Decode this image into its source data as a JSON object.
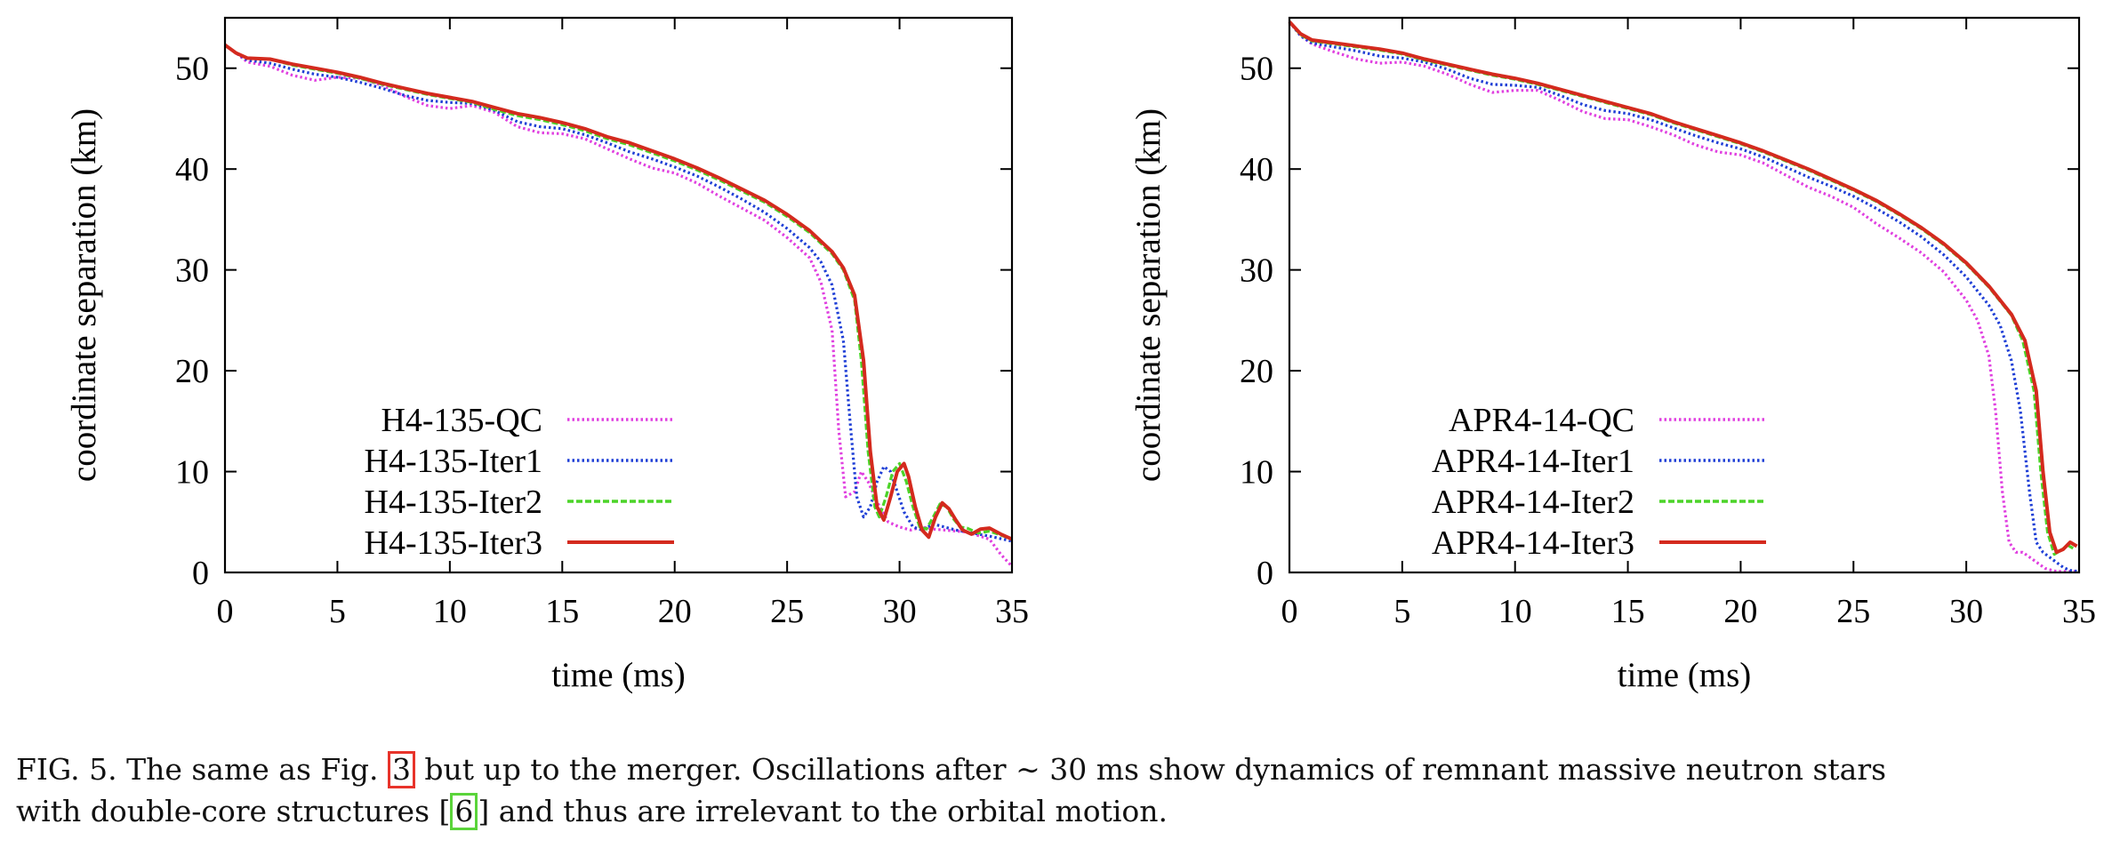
{
  "chart_data": [
    {
      "type": "line",
      "title": "",
      "xlabel": "time (ms)",
      "ylabel": "coordinate separation (km)",
      "xlim": [
        0,
        35
      ],
      "ylim": [
        0,
        55
      ],
      "xticks": [
        0,
        5,
        10,
        15,
        20,
        25,
        30,
        35
      ],
      "yticks": [
        0,
        10,
        20,
        30,
        40,
        50
      ],
      "grid": false,
      "legend_position": "bottom-left",
      "series": [
        {
          "name": "H4-135-QC",
          "color": "#e040e0",
          "style": "dotted",
          "x": [
            0,
            0.5,
            1,
            2,
            3,
            4,
            5,
            6,
            7,
            8,
            9,
            10,
            11,
            12,
            13,
            14,
            15,
            16,
            17,
            18,
            19,
            20,
            21,
            22,
            23,
            24,
            25,
            26,
            26.5,
            27,
            27.3,
            27.6,
            28,
            28.3,
            28.6,
            29,
            29.5,
            30,
            30.5,
            31,
            31.5,
            32,
            33,
            34,
            34.5,
            35
          ],
          "y": [
            52.3,
            51.5,
            50.6,
            50.2,
            49.3,
            48.8,
            49.1,
            49,
            48.3,
            47.2,
            46.3,
            46,
            46.3,
            45.6,
            44.2,
            43.6,
            43.5,
            43,
            42,
            41,
            40.1,
            39.6,
            38.6,
            37.3,
            36.1,
            34.9,
            33.2,
            31.2,
            28.8,
            24,
            14,
            7.5,
            8,
            10,
            9,
            7,
            5,
            4.5,
            4.2,
            4.5,
            4.3,
            4.2,
            4,
            3.3,
            1.8,
            0.6
          ]
        },
        {
          "name": "H4-135-Iter1",
          "color": "#1f3fd6",
          "style": "dotted",
          "x": [
            0,
            0.5,
            1,
            2,
            3,
            4,
            5,
            6,
            7,
            8,
            9,
            10,
            11,
            12,
            13,
            14,
            15,
            16,
            17,
            18,
            19,
            20,
            21,
            22,
            23,
            24,
            25,
            26,
            26.5,
            27,
            27.5,
            27.8,
            28.1,
            28.4,
            28.7,
            29,
            29.3,
            29.6,
            29.9,
            30.2,
            30.6,
            31,
            31.5,
            32,
            32.5,
            33,
            34,
            35
          ],
          "y": [
            52.3,
            51.5,
            50.8,
            50.5,
            49.9,
            49.4,
            49.1,
            48.6,
            48,
            47.3,
            46.8,
            46.6,
            46.5,
            45.8,
            44.7,
            44.2,
            44,
            43.4,
            42.6,
            41.7,
            41,
            40.2,
            39.3,
            38.2,
            37,
            35.7,
            34.1,
            32.2,
            30.8,
            28.5,
            23,
            15,
            7.5,
            5.5,
            6.5,
            9,
            10.5,
            10,
            8,
            6,
            4.5,
            4.2,
            4.8,
            4.5,
            4.2,
            4,
            3.6,
            3.1
          ]
        },
        {
          "name": "H4-135-Iter2",
          "color": "#4cd429",
          "style": "dashed",
          "x": [
            0,
            0.5,
            1,
            2,
            3,
            4,
            5,
            6,
            7,
            8,
            9,
            10,
            11,
            12,
            13,
            14,
            15,
            16,
            17,
            18,
            19,
            20,
            21,
            22,
            23,
            24,
            25,
            26,
            27,
            27.5,
            28,
            28.3,
            28.6,
            28.9,
            29.1,
            29.4,
            29.7,
            30,
            30.3,
            30.6,
            30.9,
            31.2,
            31.5,
            31.8,
            32.1,
            32.4,
            32.7,
            33,
            33.5,
            34,
            34.5,
            35
          ],
          "y": [
            52.3,
            51.5,
            51,
            50.9,
            50.3,
            49.9,
            49.5,
            49,
            48.4,
            47.9,
            47.4,
            47,
            46.6,
            45.9,
            45.3,
            44.9,
            44.4,
            43.8,
            43,
            42.4,
            41.6,
            40.8,
            39.9,
            38.9,
            37.8,
            36.7,
            35.3,
            33.7,
            31.6,
            30,
            27,
            21,
            12,
            6.5,
            5.5,
            7.5,
            10,
            10.8,
            9,
            6.5,
            4.5,
            4.3,
            5.5,
            6.8,
            6.5,
            5.3,
            4.5,
            4.4,
            3.9,
            4.1,
            3.7,
            3.3
          ]
        },
        {
          "name": "H4-135-Iter3",
          "color": "#d42a1e",
          "style": "solid",
          "x": [
            0,
            0.5,
            1,
            2,
            3,
            4,
            5,
            6,
            7,
            8,
            9,
            10,
            11,
            12,
            13,
            14,
            15,
            16,
            17,
            18,
            19,
            20,
            21,
            22,
            23,
            24,
            25,
            26,
            27,
            27.5,
            28,
            28.4,
            28.7,
            29,
            29.3,
            29.6,
            29.9,
            30.2,
            30.4,
            30.7,
            31,
            31.3,
            31.6,
            31.9,
            32.2,
            32.5,
            32.8,
            33.2,
            33.6,
            34,
            34.5,
            35
          ],
          "y": [
            52.3,
            51.5,
            51,
            50.9,
            50.4,
            50,
            49.6,
            49.1,
            48.5,
            48,
            47.5,
            47.1,
            46.7,
            46.1,
            45.5,
            45.1,
            44.6,
            44,
            43.2,
            42.6,
            41.8,
            41,
            40.1,
            39.1,
            38,
            36.9,
            35.5,
            33.9,
            31.8,
            30.2,
            27.5,
            21,
            12,
            6.5,
            5.2,
            7.5,
            10,
            10.8,
            9.5,
            6.5,
            4.2,
            3.5,
            5.5,
            6.9,
            6.3,
            5.2,
            4.2,
            3.8,
            4.3,
            4.4,
            3.8,
            3.3
          ]
        }
      ]
    },
    {
      "type": "line",
      "title": "",
      "xlabel": "time (ms)",
      "ylabel": "coordinate separation (km)",
      "xlim": [
        0,
        35
      ],
      "ylim": [
        0,
        55
      ],
      "xticks": [
        0,
        5,
        10,
        15,
        20,
        25,
        30,
        35
      ],
      "yticks": [
        0,
        10,
        20,
        30,
        40,
        50
      ],
      "grid": false,
      "legend_position": "bottom-left",
      "series": [
        {
          "name": "APR4-14-QC",
          "color": "#e040e0",
          "style": "dotted",
          "x": [
            0,
            0.5,
            1,
            2,
            3,
            4,
            5,
            6,
            7,
            8,
            9,
            10,
            11,
            12,
            13,
            14,
            15,
            16,
            17,
            18,
            19,
            20,
            21,
            22,
            23,
            24,
            25,
            26,
            27,
            28,
            29,
            30,
            30.5,
            31,
            31.3,
            31.6,
            31.9,
            32.2,
            32.5,
            33,
            33.5,
            34,
            34.5,
            35
          ],
          "y": [
            54.6,
            53.2,
            52.4,
            51.6,
            50.9,
            50.5,
            50.6,
            50.2,
            49.4,
            48.4,
            47.6,
            47.8,
            47.8,
            46.8,
            45.7,
            45,
            44.9,
            44.2,
            43.4,
            42.4,
            41.7,
            41.4,
            40.6,
            39.4,
            38.2,
            37.3,
            36.2,
            34.6,
            33.2,
            31.7,
            29.8,
            27,
            25,
            21.5,
            16,
            8,
            3,
            2,
            2,
            1.2,
            0.4,
            0.1,
            0.1,
            0.1
          ]
        },
        {
          "name": "APR4-14-Iter1",
          "color": "#1f3fd6",
          "style": "dotted",
          "x": [
            0,
            0.5,
            1,
            2,
            3,
            4,
            5,
            6,
            7,
            8,
            9,
            10,
            11,
            12,
            13,
            14,
            15,
            16,
            17,
            18,
            19,
            20,
            21,
            22,
            23,
            24,
            25,
            26,
            27,
            28,
            29,
            30,
            31,
            31.5,
            32,
            32.4,
            32.8,
            33.1,
            33.4,
            33.7,
            34,
            34.3,
            34.6,
            35
          ],
          "y": [
            54.6,
            53.2,
            52.5,
            52.1,
            51.7,
            51.2,
            51,
            50.6,
            49.9,
            49,
            48.4,
            48.3,
            48.1,
            47.3,
            46.4,
            45.8,
            45.5,
            44.9,
            44.1,
            43.3,
            42.6,
            42,
            41.2,
            40.2,
            39.2,
            38.3,
            37.3,
            36.1,
            34.8,
            33.3,
            31.5,
            29.3,
            26.5,
            24.5,
            21,
            16,
            8,
            3,
            2,
            1.5,
            1,
            0.5,
            0.2,
            0.1
          ]
        },
        {
          "name": "APR4-14-Iter2",
          "color": "#4cd429",
          "style": "dashed",
          "x": [
            0,
            0.5,
            1,
            2,
            3,
            4,
            5,
            6,
            7,
            8,
            9,
            10,
            11,
            12,
            13,
            14,
            15,
            16,
            17,
            18,
            19,
            20,
            21,
            22,
            23,
            24,
            25,
            26,
            27,
            28,
            29,
            30,
            31,
            32,
            32.5,
            33,
            33.3,
            33.6,
            33.9,
            34.2,
            34.5,
            34.8
          ],
          "y": [
            54.6,
            53.3,
            52.7,
            52.4,
            52.1,
            51.8,
            51.4,
            50.8,
            50.3,
            49.8,
            49.3,
            48.9,
            48.4,
            47.8,
            47.2,
            46.6,
            46,
            45.4,
            44.6,
            43.9,
            43.2,
            42.5,
            41.7,
            40.8,
            39.9,
            38.9,
            37.9,
            36.8,
            35.5,
            34.1,
            32.5,
            30.6,
            28.3,
            25.5,
            23,
            18,
            10,
            4,
            1.8,
            2.2,
            2.7,
            2.3
          ]
        },
        {
          "name": "APR4-14-Iter3",
          "color": "#d42a1e",
          "style": "solid",
          "x": [
            0,
            0.5,
            1,
            2,
            3,
            4,
            5,
            6,
            7,
            8,
            9,
            10,
            11,
            12,
            13,
            14,
            15,
            16,
            17,
            18,
            19,
            20,
            21,
            22,
            23,
            24,
            25,
            26,
            27,
            28,
            29,
            30,
            31,
            32,
            32.6,
            33.1,
            33.4,
            33.7,
            34,
            34.3,
            34.6,
            34.9
          ],
          "y": [
            54.6,
            53.4,
            52.8,
            52.5,
            52.2,
            51.9,
            51.5,
            50.9,
            50.4,
            49.9,
            49.4,
            49,
            48.5,
            47.9,
            47.3,
            46.7,
            46.1,
            45.5,
            44.7,
            44,
            43.3,
            42.6,
            41.8,
            40.9,
            40,
            39,
            38,
            36.9,
            35.6,
            34.2,
            32.6,
            30.7,
            28.4,
            25.6,
            23,
            18,
            10,
            4,
            2,
            2.3,
            3,
            2.6
          ]
        }
      ]
    }
  ],
  "caption": {
    "line1_before_ref": "FIG. 5. The same as Fig. ",
    "ref_fig": "3",
    "line1_after_ref": " but up to the merger. Oscillations after ∼ 30 ms show dynamics of remnant massive neutron stars",
    "line2_before_ref": "with double-core structures [",
    "ref_cite": "6",
    "line2_after_ref": "] and thus are irrelevant to the orbital motion."
  }
}
